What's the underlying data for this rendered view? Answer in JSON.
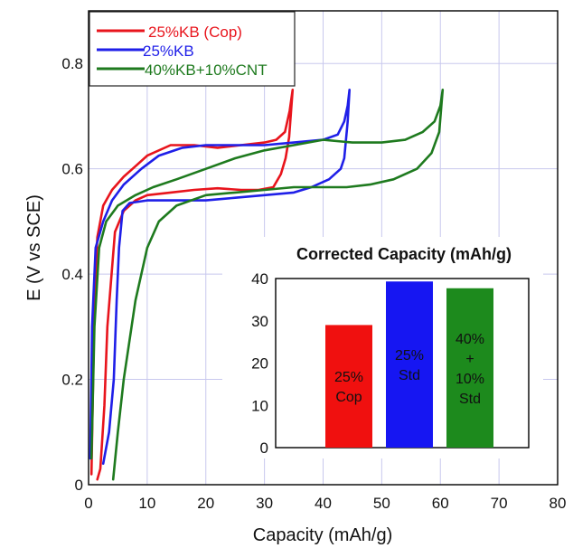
{
  "chart_data": [
    {
      "type": "line",
      "xlabel": "Capacity (mAh/g)",
      "ylabel": "E (V vs SCE)",
      "xlim": [
        0,
        80
      ],
      "ylim": [
        0,
        0.9
      ],
      "xticks": [
        0,
        10,
        20,
        30,
        40,
        50,
        60,
        70,
        80
      ],
      "xtick_labels": [
        "0",
        "10",
        "20",
        "30",
        "40",
        "50",
        "60",
        "70",
        "80"
      ],
      "yticks": [
        0,
        0.2,
        0.4,
        0.6,
        0.8
      ],
      "ytick_labels": [
        "0",
        "0.2",
        "0.4",
        "0.6",
        "0.8"
      ],
      "grid": true,
      "legend": "top-left",
      "series": [
        {
          "name": "25%KB (Cop)",
          "color": "#e8141c",
          "x": [
            0.5,
            0.7,
            1.0,
            1.5,
            2.5,
            4,
            6,
            8,
            10,
            14,
            18,
            22,
            26,
            30,
            32,
            33.5,
            34.3,
            34.8,
            34.6,
            34.2,
            33.6,
            32.8,
            31.5,
            29,
            26,
            22,
            18,
            14,
            10,
            8,
            6,
            4.5,
            3.2,
            2.7,
            2.3,
            2.0,
            1.5
          ],
          "y": [
            0.02,
            0.15,
            0.35,
            0.47,
            0.53,
            0.56,
            0.585,
            0.605,
            0.625,
            0.645,
            0.645,
            0.64,
            0.645,
            0.65,
            0.655,
            0.67,
            0.71,
            0.75,
            0.72,
            0.66,
            0.62,
            0.59,
            0.565,
            0.56,
            0.56,
            0.563,
            0.56,
            0.555,
            0.55,
            0.54,
            0.52,
            0.48,
            0.3,
            0.15,
            0.08,
            0.03,
            0.01
          ]
        },
        {
          "name": "25%KB",
          "color": "#1f1fe8",
          "x": [
            0.3,
            0.6,
            1.2,
            2.5,
            4,
            6,
            9,
            12,
            16,
            20,
            25,
            30,
            35,
            40,
            42.5,
            43.6,
            44.2,
            44.5,
            44.2,
            43.6,
            43,
            41,
            38,
            35,
            30,
            25,
            20,
            15,
            10,
            7,
            5.8,
            5.2,
            4.8,
            4.3,
            3.5,
            2.5
          ],
          "y": [
            0.05,
            0.3,
            0.45,
            0.5,
            0.54,
            0.57,
            0.6,
            0.625,
            0.64,
            0.645,
            0.645,
            0.645,
            0.65,
            0.655,
            0.665,
            0.69,
            0.72,
            0.75,
            0.69,
            0.62,
            0.6,
            0.58,
            0.565,
            0.555,
            0.55,
            0.545,
            0.54,
            0.54,
            0.54,
            0.535,
            0.52,
            0.45,
            0.35,
            0.2,
            0.1,
            0.04
          ]
        },
        {
          "name": "40%KB+10%CNT",
          "color": "#1e7a1e",
          "x": [
            0.5,
            1.0,
            1.8,
            3,
            5,
            8,
            11,
            15,
            20,
            25,
            30,
            35,
            40,
            45,
            50,
            54,
            57,
            59,
            60,
            60.4,
            59.8,
            58.5,
            56,
            52,
            48,
            44,
            40,
            35,
            30,
            25,
            20,
            15,
            12,
            10,
            8,
            6,
            5,
            4.2
          ],
          "y": [
            0.05,
            0.3,
            0.45,
            0.5,
            0.53,
            0.55,
            0.565,
            0.58,
            0.6,
            0.62,
            0.635,
            0.645,
            0.655,
            0.65,
            0.65,
            0.655,
            0.67,
            0.69,
            0.72,
            0.75,
            0.67,
            0.63,
            0.6,
            0.58,
            0.57,
            0.565,
            0.565,
            0.565,
            0.56,
            0.555,
            0.55,
            0.53,
            0.5,
            0.45,
            0.35,
            0.2,
            0.1,
            0.01
          ]
        }
      ]
    },
    {
      "type": "bar",
      "title": "Corrected Capacity (mAh/g)",
      "ylim": [
        0,
        40
      ],
      "yticks": [
        0,
        10,
        20,
        30,
        40
      ],
      "ytick_labels": [
        "0",
        "10",
        "20",
        "30",
        "40"
      ],
      "categories": [
        "25% Cop",
        "25% Std",
        "40% + 10% Std"
      ],
      "values": [
        29,
        39.3,
        37.7
      ],
      "colors": [
        "#f0100f",
        "#1616f2",
        "#1d8a1d"
      ],
      "bar_labels": [
        [
          "25%",
          "Cop"
        ],
        [
          "25%",
          "Std"
        ],
        [
          "40%",
          "+",
          "10%",
          "Std"
        ]
      ]
    }
  ]
}
